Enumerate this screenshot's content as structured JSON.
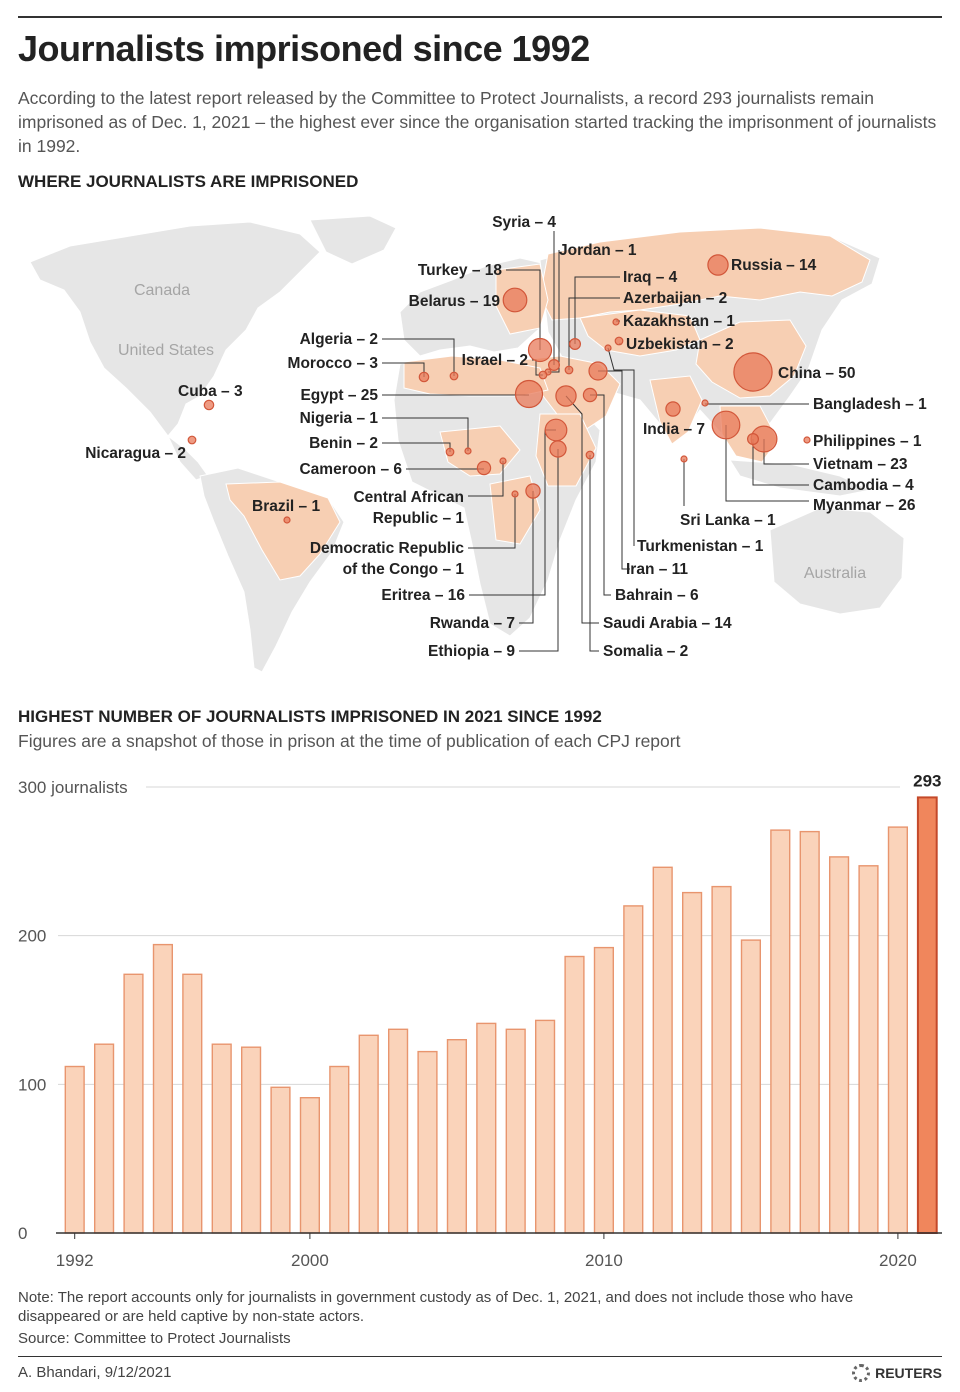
{
  "title": "Journalists imprisoned since 1992",
  "intro": "According to the latest report released by the Committee to Protect Journalists, a record 293 journalists remain imprisoned as of Dec. 1, 2021 – the highest ever since the organisation started tracking the imprisonment of journalists in 1992.",
  "map_section": {
    "heading": "WHERE JOURNALISTS ARE IMPRISONED",
    "region_labels": [
      "Canada",
      "United States",
      "Australia"
    ],
    "bubble_color": "#e8795a",
    "land_highlight_color": "#f7cfb3",
    "land_base_color": "#e9e9e9",
    "countries": [
      {
        "label": "Syria – 4",
        "value": 4
      },
      {
        "label": "Jordan – 1",
        "value": 1
      },
      {
        "label": "Turkey – 18",
        "value": 18
      },
      {
        "label": "Iraq – 4",
        "value": 4
      },
      {
        "label": "Russia – 14",
        "value": 14
      },
      {
        "label": "Azerbaijan – 2",
        "value": 2
      },
      {
        "label": "Belarus – 19",
        "value": 19
      },
      {
        "label": "Kazakhstan – 1",
        "value": 1
      },
      {
        "label": "Uzbekistan – 2",
        "value": 2
      },
      {
        "label": "Algeria – 2",
        "value": 2
      },
      {
        "label": "Israel – 2",
        "value": 2
      },
      {
        "label": "Morocco – 3",
        "value": 3
      },
      {
        "label": "China – 50",
        "value": 50
      },
      {
        "label": "Cuba – 3",
        "value": 3
      },
      {
        "label": "Egypt – 25",
        "value": 25
      },
      {
        "label": "Bangladesh – 1",
        "value": 1
      },
      {
        "label": "Nigeria – 1",
        "value": 1
      },
      {
        "label": "India – 7",
        "value": 7
      },
      {
        "label": "Philippines – 1",
        "value": 1
      },
      {
        "label": "Benin – 2",
        "value": 2
      },
      {
        "label": "Nicaragua – 2",
        "value": 2
      },
      {
        "label": "Vietnam – 23",
        "value": 23
      },
      {
        "label": "Cameroon – 6",
        "value": 6
      },
      {
        "label": "Cambodia – 4",
        "value": 4
      },
      {
        "label": "Central African",
        "label2": "Republic – 1",
        "value": 1
      },
      {
        "label": "Myanmar – 26",
        "value": 26
      },
      {
        "label": "Brazil – 1",
        "value": 1
      },
      {
        "label": "Sri Lanka – 1",
        "value": 1
      },
      {
        "label": "Democratic Republic",
        "label2": "of the Congo – 1",
        "value": 1
      },
      {
        "label": "Turkmenistan – 1",
        "value": 1
      },
      {
        "label": "Iran – 11",
        "value": 11
      },
      {
        "label": "Eritrea – 16",
        "value": 16
      },
      {
        "label": "Bahrain – 6",
        "value": 6
      },
      {
        "label": "Rwanda – 7",
        "value": 7
      },
      {
        "label": "Saudi Arabia – 14",
        "value": 14
      },
      {
        "label": "Ethiopia – 9",
        "value": 9
      },
      {
        "label": "Somalia – 2",
        "value": 2
      }
    ]
  },
  "chart_section": {
    "heading": "HIGHEST NUMBER OF JOURNALISTS IMPRISONED IN 2021 SINCE 1992",
    "subheading": "Figures are a snapshot of those in prison at the time of publication of each CPJ report"
  },
  "chart_data": {
    "type": "bar",
    "categories": [
      1992,
      1993,
      1994,
      1995,
      1996,
      1997,
      1998,
      1999,
      2000,
      2001,
      2002,
      2003,
      2004,
      2005,
      2006,
      2007,
      2008,
      2009,
      2010,
      2011,
      2012,
      2013,
      2014,
      2015,
      2016,
      2017,
      2018,
      2019,
      2020,
      2021
    ],
    "values": [
      112,
      127,
      174,
      194,
      174,
      127,
      125,
      98,
      91,
      112,
      133,
      137,
      122,
      130,
      141,
      137,
      143,
      186,
      192,
      220,
      246,
      229,
      233,
      197,
      271,
      270,
      253,
      247,
      273,
      293
    ],
    "highlight": {
      "category": 2021,
      "value_label": "293"
    },
    "ylim": [
      0,
      300
    ],
    "yticks": [
      {
        "value": 300,
        "label": "300 journalists"
      },
      {
        "value": 200,
        "label": "200"
      },
      {
        "value": 100,
        "label": "100"
      },
      {
        "value": 0,
        "label": "0"
      }
    ],
    "xticks": [
      {
        "value": 1992,
        "label": "1992"
      },
      {
        "value": 2000,
        "label": "2000"
      },
      {
        "value": 2010,
        "label": "2010"
      },
      {
        "value": 2020,
        "label": "2020"
      }
    ],
    "grid": true,
    "bar_color": "#fad3ba",
    "bar_edge_color": "#e8956e",
    "highlight_color": "#f0865c",
    "highlight_edge_color": "#c4492a"
  },
  "note": "Note: The report accounts only for journalists in government custody as of Dec. 1, 2021, and does not include those who have disappeared or are held captive by non-state actors.",
  "source": "Source: Committee to Protect Journalists",
  "credit": "A. Bhandari, 9/12/2021",
  "brand": "REUTERS"
}
